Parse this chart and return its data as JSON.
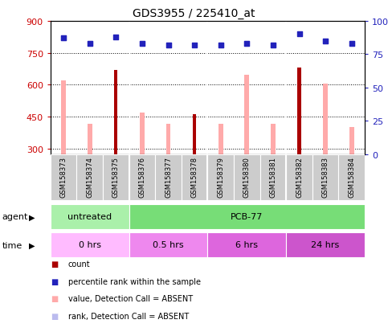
{
  "title": "GDS3955 / 225410_at",
  "samples": [
    "GSM158373",
    "GSM158374",
    "GSM158375",
    "GSM158376",
    "GSM158377",
    "GSM158378",
    "GSM158379",
    "GSM158380",
    "GSM158381",
    "GSM158382",
    "GSM158383",
    "GSM158384"
  ],
  "count_values": [
    null,
    null,
    670,
    null,
    null,
    460,
    null,
    null,
    null,
    680,
    null,
    null
  ],
  "value_absent": [
    620,
    415,
    null,
    470,
    415,
    null,
    415,
    645,
    415,
    null,
    605,
    400
  ],
  "percentile_rank": [
    87,
    83,
    88,
    83,
    82,
    82,
    82,
    83,
    82,
    90,
    85,
    83
  ],
  "rank_absent": [
    87,
    83,
    null,
    83,
    82,
    null,
    82,
    83,
    82,
    null,
    85,
    83
  ],
  "ylim_left": [
    275,
    900
  ],
  "ylim_right": [
    0,
    100
  ],
  "yticks_left": [
    300,
    450,
    600,
    750,
    900
  ],
  "yticks_right": [
    0,
    25,
    50,
    75,
    100
  ],
  "ytick_right_labels": [
    "0",
    "25",
    "50",
    "75",
    "100%"
  ],
  "agent_groups": [
    {
      "label": "untreated",
      "start": 0,
      "end": 3,
      "color": "#aaf0aa"
    },
    {
      "label": "PCB-77",
      "start": 3,
      "end": 12,
      "color": "#77dd77"
    }
  ],
  "time_groups": [
    {
      "label": "0 hrs",
      "start": 0,
      "end": 3,
      "color": "#ffbbff"
    },
    {
      "label": "0.5 hrs",
      "start": 3,
      "end": 6,
      "color": "#ee88ee"
    },
    {
      "label": "6 hrs",
      "start": 6,
      "end": 9,
      "color": "#dd66dd"
    },
    {
      "label": "24 hrs",
      "start": 9,
      "end": 12,
      "color": "#cc55cc"
    }
  ],
  "count_color": "#aa0000",
  "value_absent_color": "#ffaaaa",
  "rank_absent_color": "#bbbbee",
  "percentile_rank_color": "#2222bb",
  "bar_width": 0.18,
  "bg_color": "#ffffff",
  "plot_bg": "#ffffff",
  "axis_label_left_color": "#cc0000",
  "axis_label_right_color": "#2222bb",
  "sample_box_color": "#cccccc",
  "grid_line_color": "#000000",
  "legend_items": [
    {
      "color": "#aa0000",
      "label": "count"
    },
    {
      "color": "#2222bb",
      "label": "percentile rank within the sample"
    },
    {
      "color": "#ffaaaa",
      "label": "value, Detection Call = ABSENT"
    },
    {
      "color": "#bbbbee",
      "label": "rank, Detection Call = ABSENT"
    }
  ]
}
